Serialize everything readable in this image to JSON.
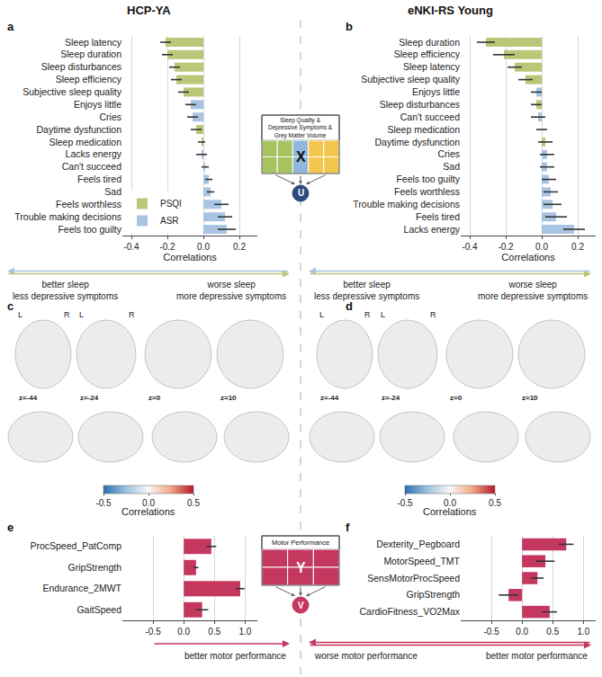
{
  "columns": [
    "HCP-YA",
    "eNKI-RS Young"
  ],
  "diagrams": [
    {
      "header": "Sleep Quality & Depressive Symptoms & Grey Matter Volume",
      "matrix": "X",
      "latent": "U"
    },
    {
      "header": "Motor Performance",
      "matrix": "Y",
      "latent": "V"
    }
  ],
  "chart_data": [
    {
      "label": "a",
      "type": "bar",
      "orientation": "horizontal",
      "categories": [
        "Sleep latency",
        "Sleep duration",
        "Sleep disturbances",
        "Sleep efficiency",
        "Subjective sleep quality",
        "Enjoys little",
        "Cries",
        "Daytime dysfunction",
        "Sleep medication",
        "Lacks energy",
        "Can't succeed",
        "Feels tired",
        "Sad",
        "Feels worthless",
        "Trouble making decisions",
        "Feels too guilty"
      ],
      "series": [
        {
          "name": "PSQI",
          "color": "#b8c878",
          "values": [
            -0.21,
            -0.2,
            -0.16,
            -0.15,
            -0.11,
            null,
            null,
            -0.04,
            -0.01,
            null,
            null,
            null,
            null,
            null,
            null,
            null
          ],
          "errors": [
            0.03,
            0.03,
            0.03,
            0.03,
            0.03,
            null,
            null,
            0.03,
            0.02,
            null,
            null,
            null,
            null,
            null,
            null,
            null
          ]
        },
        {
          "name": "ASR",
          "color": "#a8c4e2",
          "values": [
            null,
            null,
            null,
            null,
            null,
            -0.07,
            -0.06,
            null,
            null,
            -0.01,
            0.01,
            0.03,
            0.04,
            0.1,
            0.12,
            0.13
          ],
          "errors": [
            null,
            null,
            null,
            null,
            null,
            0.03,
            0.03,
            null,
            null,
            0.03,
            0.02,
            0.02,
            0.02,
            0.04,
            0.04,
            0.05
          ]
        }
      ],
      "xlabel": "Correlations",
      "xlim": [
        -0.45,
        0.3
      ],
      "xticks": [
        -0.4,
        -0.2,
        {
          "value": 0,
          "label": "0.0"
        },
        0.2
      ],
      "grid": true,
      "legend": "lower left",
      "arrow_left": [
        "better sleep",
        "less depressive symptoms"
      ],
      "arrow_right": [
        "worse sleep",
        "more depressive symptoms"
      ]
    },
    {
      "label": "b",
      "type": "bar",
      "orientation": "horizontal",
      "categories": [
        "Sleep duration",
        "Sleep efficiency",
        "Sleep latency",
        "Subjective sleep quality",
        "Enjoys little",
        "Sleep disturbances",
        "Can't succeed",
        "Sleep medication",
        "Daytime dysfunction",
        "Cries",
        "Sad",
        "Feels too guilty",
        "Feels worthless",
        "Trouble making decisions",
        "Feels tired",
        "Lacks energy"
      ],
      "series": [
        {
          "name": "PSQI",
          "color": "#b8c878",
          "values": [
            -0.31,
            -0.21,
            -0.15,
            -0.09,
            null,
            -0.03,
            null,
            0,
            0.02,
            null,
            null,
            null,
            null,
            null,
            null,
            null
          ],
          "errors": [
            0.05,
            0.06,
            0.04,
            0.04,
            null,
            0.03,
            null,
            0.03,
            0.04,
            null,
            null,
            null,
            null,
            null,
            null,
            null
          ]
        },
        {
          "name": "ASR",
          "color": "#a8c4e2",
          "values": [
            null,
            null,
            null,
            null,
            -0.03,
            null,
            -0.02,
            null,
            null,
            0.03,
            0.03,
            0.04,
            0.05,
            0.06,
            0.08,
            0.18
          ],
          "errors": [
            null,
            null,
            null,
            null,
            0.03,
            null,
            0.04,
            null,
            null,
            0.04,
            0.04,
            0.04,
            0.04,
            0.05,
            0.06,
            0.06
          ]
        }
      ],
      "xlabel": "Correlations",
      "xlim": [
        -0.45,
        0.3
      ],
      "xticks": [
        -0.4,
        -0.2,
        {
          "value": 0,
          "label": "0.0"
        },
        0.2
      ],
      "grid": true,
      "arrow_left": [
        "better sleep",
        "less depressive symptoms"
      ],
      "arrow_right": [
        "worse sleep",
        "more depressive symptoms"
      ]
    },
    {
      "label": "c",
      "type": "colorbar",
      "title": "Correlations",
      "range": [
        -0.5,
        0.5
      ],
      "ticks": [
        -0.5,
        {
          "value": 0,
          "label": "0.0"
        },
        0.5
      ],
      "sides": [
        "L",
        "R"
      ],
      "slices": [
        "z=-44",
        "z=-24",
        "z=0",
        "z=10"
      ]
    },
    {
      "label": "d",
      "type": "colorbar",
      "title": "Correlations",
      "range": [
        -0.5,
        0.5
      ],
      "ticks": [
        -0.5,
        {
          "value": 0,
          "label": "0.0"
        },
        0.5
      ],
      "sides": [
        "L",
        "R"
      ],
      "slices": [
        "z=-44",
        "z=-24",
        "z=0",
        "z=10"
      ]
    },
    {
      "label": "e",
      "type": "bar",
      "orientation": "horizontal",
      "categories": [
        "ProcSpeed_PatComp",
        "GripStrength",
        "Endurance_2MWT",
        "GaitSpeed"
      ],
      "values": [
        0.45,
        0.2,
        0.92,
        0.3
      ],
      "errors": [
        0.08,
        0.04,
        0.07,
        0.1
      ],
      "color": "#c4375f",
      "xlim": [
        -1,
        1.2
      ],
      "xticks": [
        -0.5,
        {
          "value": 0,
          "label": "0.0"
        },
        0.5,
        {
          "value": 1,
          "label": "1.0"
        }
      ],
      "grid": true,
      "arrow_right": [
        "better motor performance"
      ]
    },
    {
      "label": "f",
      "type": "bar",
      "orientation": "horizontal",
      "categories": [
        "Dexterity_Pegboard",
        "MotorSpeed_TMT",
        "SensMotorProcSpeed",
        "GripStrength",
        "CardioFitness_VO2Max"
      ],
      "values": [
        0.72,
        0.38,
        0.25,
        -0.22,
        0.45
      ],
      "errors": [
        0.12,
        0.15,
        0.1,
        0.16,
        0.12
      ],
      "color": "#c4375f",
      "xlim": [
        -1,
        1.2
      ],
      "xticks": [
        -0.5,
        {
          "value": 0,
          "label": "0.0"
        },
        0.5,
        {
          "value": 1,
          "label": "1.0"
        }
      ],
      "grid": true,
      "arrow_left": [
        "worse motor performance"
      ],
      "arrow_right": [
        "better motor performance"
      ]
    }
  ]
}
